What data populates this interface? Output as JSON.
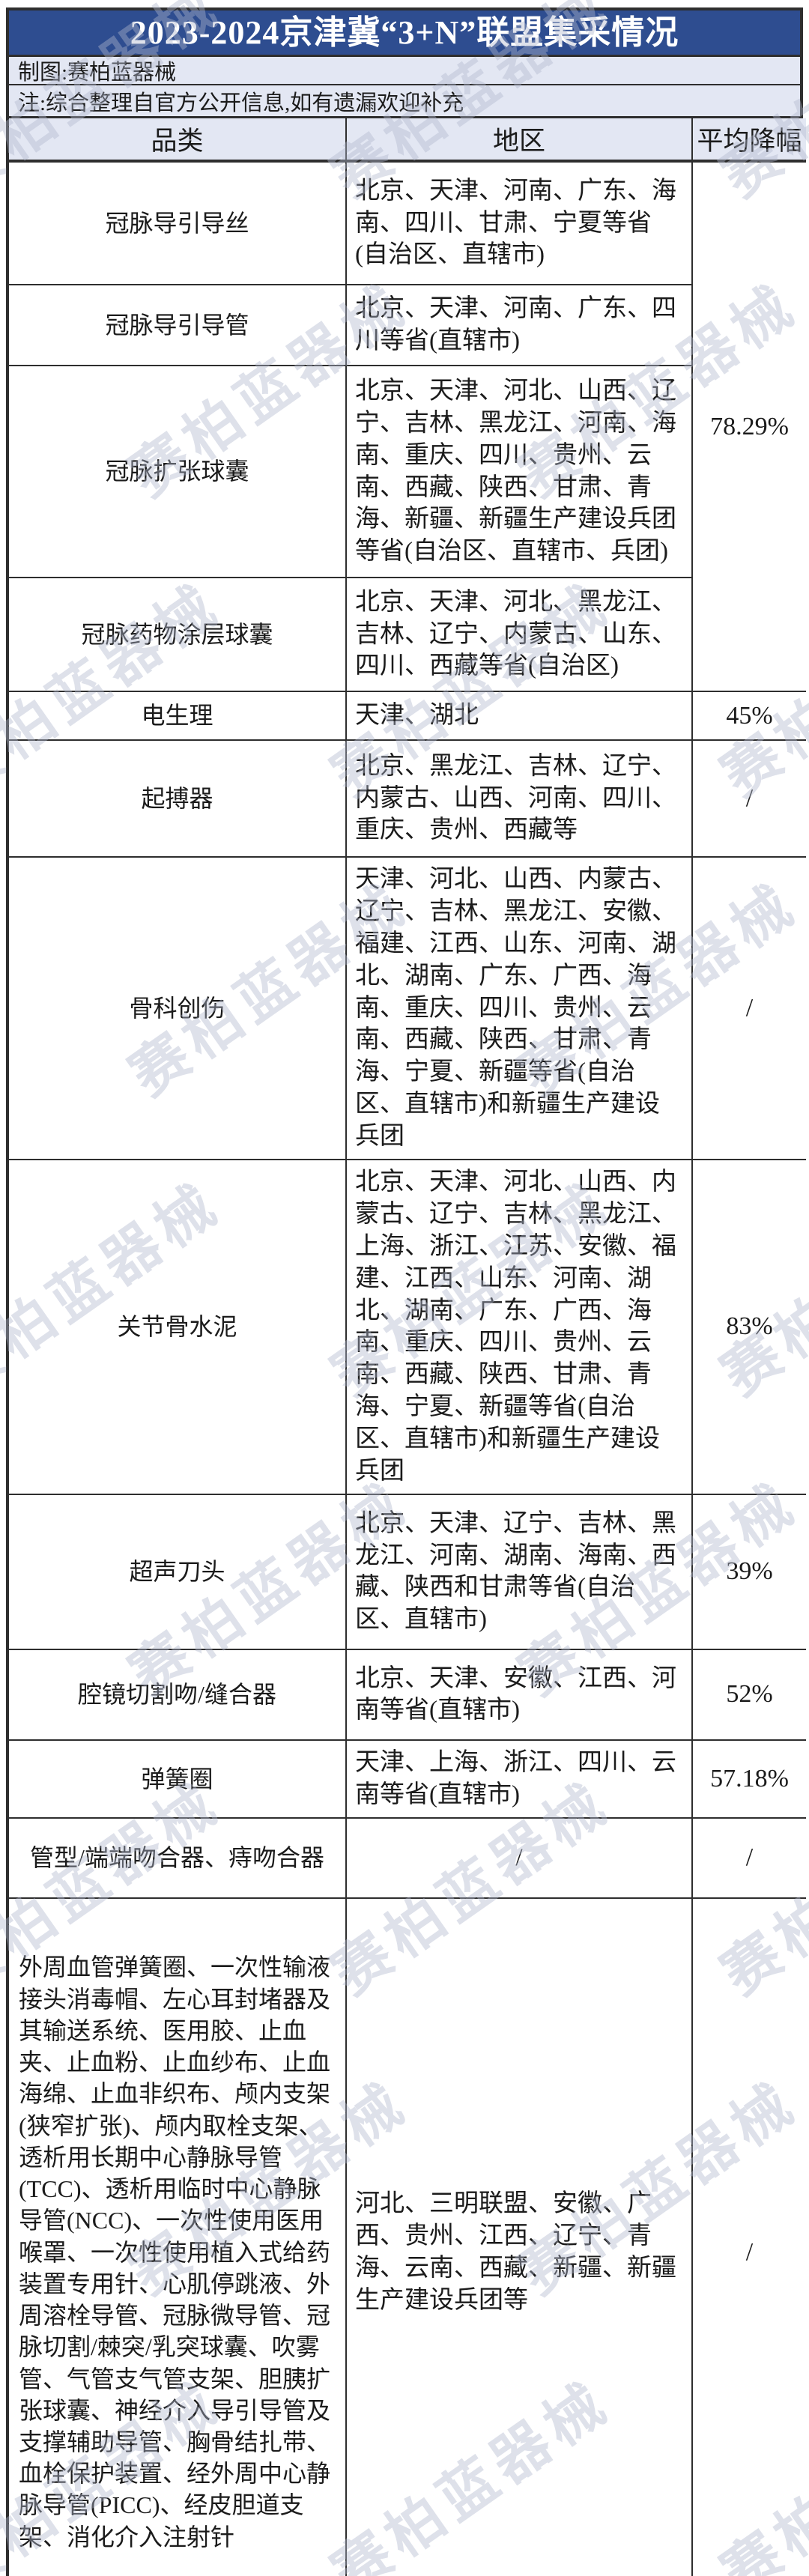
{
  "title": "2023-2024京津冀“3+N”联盟集采情况",
  "meta": {
    "credit": "制图:赛柏蓝器械",
    "note": "注:综合整理自官方公开信息,如有遗漏欢迎补充"
  },
  "watermark": {
    "text": "赛柏蓝器械"
  },
  "colors": {
    "title_bg": "#2e4d90",
    "title_text": "#ffffff",
    "band_bg": "#e3e7f3",
    "border": "#2e2e2e",
    "body_text": "#1b1b1b",
    "watermark": "#b0b7cd"
  },
  "table": {
    "columns": [
      "品类",
      "地区",
      "平均降幅"
    ],
    "rows": [
      {
        "category": "冠脉导引导丝",
        "region": "北京、天津、河南、广东、海南、四川、甘肃、宁夏等省(自治区、直辖市)",
        "value": "78.29%",
        "value_rowspan": 4
      },
      {
        "category": "冠脉导引导管",
        "region": "北京、天津、河南、广东、四川等省(直辖市)"
      },
      {
        "category": "冠脉扩张球囊",
        "region": "北京、天津、河北、山西、辽宁、吉林、黑龙江、河南、海南、重庆、四川、贵州、云南、西藏、陕西、甘肃、青海、新疆、新疆生产建设兵团等省(自治区、直辖市、兵团)"
      },
      {
        "category": "冠脉药物涂层球囊",
        "region": "北京、天津、河北、黑龙江、吉林、辽宁、内蒙古、山东、四川、西藏等省(自治区)"
      },
      {
        "category": "电生理",
        "region": "天津、湖北",
        "value": "45%"
      },
      {
        "category": "起搏器",
        "region": "北京、黑龙江、吉林、辽宁、内蒙古、山西、河南、四川、重庆、贵州、西藏等",
        "value": "/"
      },
      {
        "category": "骨科创伤",
        "region": "天津、河北、山西、内蒙古、辽宁、吉林、黑龙江、安徽、福建、江西、山东、河南、湖北、湖南、广东、广西、海南、重庆、四川、贵州、云南、西藏、陕西、甘肃、青海、宁夏、新疆等省(自治区、直辖市)和新疆生产建设兵团",
        "value": "/"
      },
      {
        "category": "关节骨水泥",
        "region": "北京、天津、河北、山西、内蒙古、辽宁、吉林、黑龙江、上海、浙江、江苏、安徽、福建、江西、山东、河南、湖北、湖南、广东、广西、海南、重庆、四川、贵州、云南、西藏、陕西、甘肃、青海、宁夏、新疆等省(自治区、直辖市)和新疆生产建设兵团",
        "value": "83%"
      },
      {
        "category": "超声刀头",
        "region": "北京、天津、辽宁、吉林、黑龙江、河南、湖南、海南、西藏、陕西和甘肃等省(自治区、直辖市)",
        "value": "39%"
      },
      {
        "category": "腔镜切割吻/缝合器",
        "region": "北京、天津、安徽、江西、河南等省(直辖市)",
        "value": "52%"
      },
      {
        "category": "弹簧圈",
        "region": "天津、上海、浙江、四川、云南等省(直辖市)",
        "value": "57.18%"
      },
      {
        "category": "管型/端端吻合器、痔吻合器",
        "region": "/",
        "value": "/"
      },
      {
        "category": "外周血管弹簧圈、一次性输液接头消毒帽、左心耳封堵器及其输送系统、医用胶、止血夹、止血粉、止血纱布、止血海绵、止血非织布、颅内支架(狭窄扩张)、颅内取栓支架、透析用长期中心静脉导管(TCC)、透析用临时中心静脉导管(NCC)、一次性使用医用喉罩、一次性使用植入式给药装置专用针、心肌停跳液、外周溶栓导管、冠脉微导管、冠脉切割/棘突/乳突球囊、吹雾管、气管支气管支架、胆胰扩张球囊、神经介入导引导管及支撑辅助导管、胸骨结扎带、血栓保护装置、经外周中心静脉导管(PICC)、经皮胆道支架、消化介入注射针",
        "region": "河北、三明联盟、安徽、广西、贵州、江西、辽宁、青海、云南、西藏、新疆、新疆生产建设兵团等",
        "value": "/"
      }
    ]
  }
}
